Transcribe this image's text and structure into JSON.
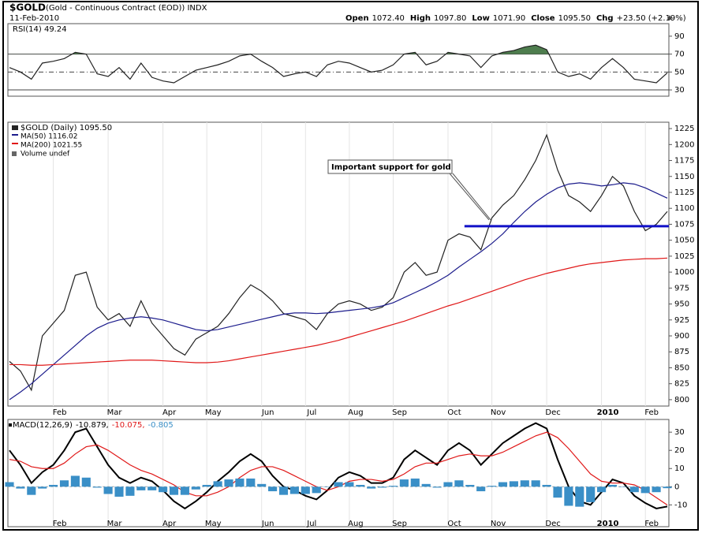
{
  "header": {
    "symbol": "$GOLD",
    "description": "(Gold - Continuous Contract (EOD)) INDX",
    "date": "11-Feb-2010",
    "quote": [
      {
        "label": "Open",
        "value": "1072.40"
      },
      {
        "label": "High",
        "value": "1097.80"
      },
      {
        "label": "Low",
        "value": "1071.90"
      },
      {
        "label": "Close",
        "value": "1095.50"
      },
      {
        "label": "Chg",
        "value": "+23.50 (+2.19%)"
      }
    ]
  },
  "chart_data": [
    {
      "type": "line",
      "legend_title": "RSI(14) 49.24",
      "ylim": [
        23,
        104
      ],
      "yticks": [
        30,
        50,
        70,
        90
      ],
      "reference_lines": [
        {
          "value": 70,
          "style": "solid"
        },
        {
          "value": 50,
          "style": "dashdot"
        },
        {
          "value": 30,
          "style": "solid"
        }
      ],
      "overbought_fill": {
        "level": 70,
        "color": "#4e7d4e"
      },
      "series": [
        {
          "name": "RSI(14)",
          "color": "#222222",
          "values": [
            55,
            50,
            42,
            60,
            62,
            65,
            72,
            70,
            48,
            45,
            55,
            42,
            60,
            44,
            40,
            38,
            45,
            52,
            55,
            58,
            62,
            68,
            70,
            62,
            55,
            45,
            48,
            50,
            45,
            58,
            62,
            60,
            55,
            50,
            52,
            58,
            70,
            72,
            58,
            62,
            72,
            70,
            68,
            55,
            68,
            72,
            74,
            78,
            80,
            75,
            50,
            45,
            48,
            42,
            55,
            65,
            55,
            42,
            40,
            38,
            49
          ]
        }
      ]
    },
    {
      "type": "line",
      "ylim": [
        790,
        1235
      ],
      "yticks": [
        800,
        825,
        850,
        875,
        900,
        925,
        950,
        975,
        1000,
        1025,
        1050,
        1075,
        1100,
        1125,
        1150,
        1175,
        1200,
        1225
      ],
      "categories": [
        null,
        null,
        null,
        null,
        "Feb",
        null,
        null,
        null,
        null,
        "Mar",
        null,
        null,
        null,
        null,
        "Apr",
        null,
        null,
        null,
        "May",
        null,
        null,
        null,
        null,
        "Jun",
        null,
        null,
        null,
        "Jul",
        null,
        null,
        null,
        "Aug",
        null,
        null,
        null,
        "Sep",
        null,
        null,
        null,
        null,
        "Oct",
        null,
        null,
        null,
        "Nov",
        null,
        null,
        null,
        null,
        "Dec",
        null,
        null,
        null,
        null,
        "2010",
        null,
        null,
        null,
        "Feb",
        null,
        null
      ],
      "extra_legend": "Volume undef",
      "annotation": {
        "text": "Important support for gold",
        "value": 1072,
        "color": "#1010c8"
      },
      "series": [
        {
          "name": "$GOLD (Daily) 1095.50",
          "color": "#222222",
          "values": [
            860,
            845,
            815,
            900,
            920,
            940,
            995,
            1000,
            945,
            925,
            935,
            915,
            955,
            920,
            900,
            880,
            870,
            895,
            905,
            915,
            935,
            960,
            980,
            970,
            955,
            935,
            930,
            925,
            910,
            935,
            950,
            955,
            950,
            940,
            945,
            960,
            1000,
            1015,
            995,
            1000,
            1050,
            1060,
            1055,
            1035,
            1085,
            1105,
            1120,
            1145,
            1175,
            1215,
            1160,
            1120,
            1110,
            1095,
            1120,
            1150,
            1135,
            1095,
            1065,
            1075,
            1095
          ]
        },
        {
          "name": "MA(50) 1116.02",
          "color": "#1c1c8c",
          "values": [
            800,
            812,
            825,
            840,
            855,
            870,
            885,
            900,
            912,
            920,
            925,
            928,
            930,
            928,
            925,
            920,
            915,
            910,
            908,
            910,
            914,
            918,
            922,
            926,
            930,
            934,
            936,
            936,
            935,
            936,
            938,
            940,
            942,
            944,
            947,
            952,
            960,
            968,
            976,
            985,
            995,
            1008,
            1020,
            1032,
            1045,
            1060,
            1078,
            1095,
            1110,
            1122,
            1132,
            1138,
            1140,
            1138,
            1135,
            1137,
            1140,
            1138,
            1132,
            1124,
            1116
          ]
        },
        {
          "name": "MA(200) 1021.55",
          "color": "#e01818",
          "values": [
            855,
            855,
            854,
            854,
            855,
            856,
            857,
            858,
            859,
            860,
            861,
            862,
            862,
            862,
            861,
            860,
            859,
            858,
            858,
            859,
            861,
            864,
            867,
            870,
            873,
            876,
            879,
            882,
            885,
            889,
            893,
            898,
            903,
            908,
            913,
            918,
            923,
            929,
            935,
            941,
            947,
            952,
            958,
            964,
            970,
            976,
            982,
            988,
            993,
            998,
            1002,
            1006,
            1010,
            1013,
            1015,
            1017,
            1019,
            1020,
            1021,
            1021,
            1022
          ]
        }
      ]
    },
    {
      "type": "macd",
      "legend_title": "MACD(12,26,9)",
      "ylim": [
        -22,
        37
      ],
      "yticks": [
        -10,
        0,
        10,
        20,
        30
      ],
      "categories": [
        null,
        null,
        null,
        null,
        "Feb",
        null,
        null,
        null,
        null,
        "Mar",
        null,
        null,
        null,
        null,
        "Apr",
        null,
        null,
        null,
        "May",
        null,
        null,
        null,
        null,
        "Jun",
        null,
        null,
        null,
        "Jul",
        null,
        null,
        null,
        "Aug",
        null,
        null,
        null,
        "Sep",
        null,
        null,
        null,
        null,
        "Oct",
        null,
        null,
        null,
        "Nov",
        null,
        null,
        null,
        null,
        "Dec",
        null,
        null,
        null,
        null,
        "2010",
        null,
        null,
        null,
        "Feb",
        null,
        null
      ],
      "series": [
        {
          "name": "-10.879,",
          "color": "#000000",
          "values": [
            20,
            12,
            2,
            8,
            12,
            20,
            30,
            32,
            22,
            12,
            5,
            2,
            5,
            3,
            -2,
            -8,
            -12,
            -8,
            -3,
            3,
            8,
            14,
            18,
            14,
            6,
            0,
            -2,
            -5,
            -7,
            -2,
            5,
            8,
            6,
            2,
            2,
            5,
            15,
            20,
            16,
            12,
            20,
            24,
            20,
            12,
            18,
            24,
            28,
            32,
            35,
            32,
            15,
            0,
            -8,
            -10,
            -3,
            4,
            2,
            -5,
            -9,
            -12,
            -10.879
          ]
        },
        {
          "name": "-10.075,",
          "color": "#e01818",
          "values": [
            15,
            14,
            11,
            10,
            10,
            13,
            18,
            22,
            23,
            20,
            16,
            12,
            9,
            7,
            4,
            1,
            -3,
            -5,
            -5,
            -3,
            0,
            5,
            9,
            11,
            11,
            9,
            6,
            3,
            0,
            -2,
            0,
            3,
            4,
            4,
            3,
            4,
            7,
            11,
            13,
            13,
            15,
            17,
            18,
            17,
            17,
            19,
            22,
            25,
            28,
            30,
            27,
            21,
            14,
            7,
            3,
            2,
            2,
            1,
            -2,
            -6,
            -10.075
          ]
        },
        {
          "name": "-0.805",
          "color": "#3a8fc7",
          "kind": "histogram",
          "values": [
            2.5,
            -1,
            -4.5,
            -1,
            1,
            3.5,
            6,
            5,
            -0.5,
            -4,
            -5.5,
            -5,
            -2,
            -2,
            -3,
            -4.5,
            -4.5,
            -1.5,
            1,
            3,
            4,
            4.5,
            4.5,
            1.5,
            -2.5,
            -4.5,
            -4,
            -4,
            -3.5,
            0,
            2.5,
            2.5,
            1,
            -1,
            -0.5,
            0.5,
            4,
            4.5,
            1.5,
            -0.5,
            2.5,
            3.5,
            1,
            -2.5,
            0.5,
            2.5,
            3,
            3.5,
            3.5,
            1,
            -6,
            -10.5,
            -11,
            -8.5,
            -3,
            1,
            0,
            -3,
            -3.5,
            -3,
            -0.805
          ]
        }
      ]
    }
  ]
}
